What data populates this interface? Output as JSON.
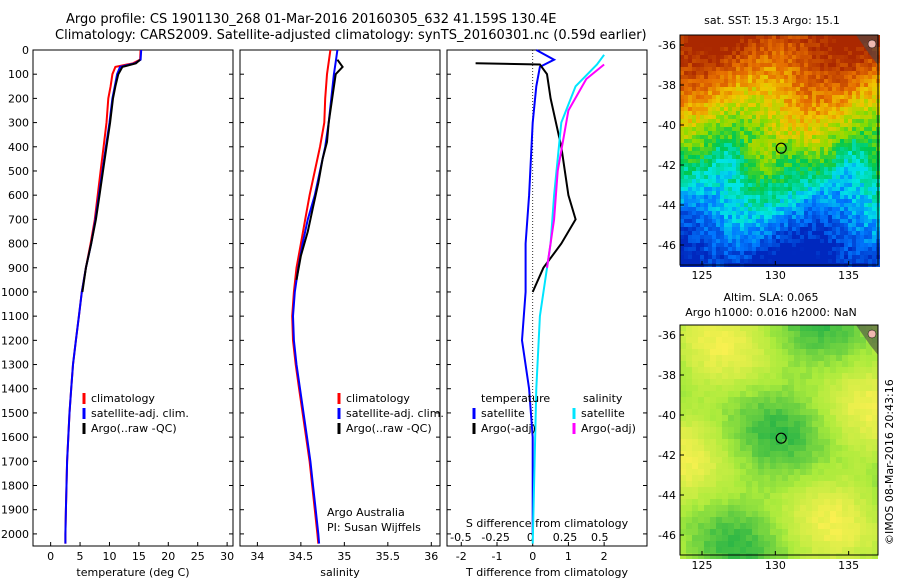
{
  "title_line1": "Argo profile: CS 1901130_268 01-Mar-2016 20160305_632 41.159S 130.4E",
  "title_line2": "Climatology: CARS2009. Satellite-adjusted climatology: synTS_20160301.nc (0.59d earlier)",
  "colors": {
    "climatology": "#ff0000",
    "satellite": "#0000ff",
    "argo": "#000000",
    "sal_satellite": "#00e5ff",
    "sal_argo": "#ff00ff"
  },
  "chart_data": [
    {
      "type": "line",
      "xlabel": "temperature (deg C)",
      "xlim": [
        -3,
        31
      ],
      "xticks": [
        0,
        5,
        10,
        15,
        20,
        25,
        30
      ],
      "ylim": [
        2050,
        0
      ],
      "yticks": [
        0,
        100,
        200,
        300,
        400,
        500,
        600,
        700,
        800,
        900,
        1000,
        1100,
        1200,
        1300,
        1400,
        1500,
        1600,
        1700,
        1800,
        1900,
        2000
      ],
      "legend": [
        "climatology",
        "satellite-adj. clim.",
        "Argo(..raw -QC)"
      ],
      "series": [
        {
          "name": "climatology",
          "color": "#ff0000",
          "points": [
            [
              15.3,
              0
            ],
            [
              15.2,
              40
            ],
            [
              14,
              55
            ],
            [
              11,
              70
            ],
            [
              10.5,
              100
            ],
            [
              10.2,
              150
            ],
            [
              9.8,
              200
            ],
            [
              9.5,
              300
            ],
            [
              9.0,
              400
            ],
            [
              8.5,
              500
            ],
            [
              8.0,
              600
            ],
            [
              7.5,
              700
            ],
            [
              6.8,
              800
            ],
            [
              6.0,
              900
            ],
            [
              5.3,
              1000
            ],
            [
              4.8,
              1100
            ],
            [
              4.3,
              1200
            ],
            [
              3.8,
              1300
            ],
            [
              3.5,
              1400
            ],
            [
              3.2,
              1500
            ],
            [
              3.0,
              1600
            ],
            [
              2.8,
              1700
            ],
            [
              2.7,
              1800
            ],
            [
              2.6,
              1900
            ],
            [
              2.5,
              2000
            ],
            [
              2.5,
              2040
            ]
          ]
        },
        {
          "name": "satellite-adj. clim.",
          "color": "#0000ff",
          "points": [
            [
              15.4,
              0
            ],
            [
              15.3,
              40
            ],
            [
              14.3,
              55
            ],
            [
              11.8,
              70
            ],
            [
              11.3,
              100
            ],
            [
              10.9,
              150
            ],
            [
              10.5,
              200
            ],
            [
              10.0,
              300
            ],
            [
              9.4,
              400
            ],
            [
              8.8,
              500
            ],
            [
              8.2,
              600
            ],
            [
              7.6,
              700
            ],
            [
              6.9,
              800
            ],
            [
              6.0,
              900
            ],
            [
              5.3,
              1000
            ],
            [
              4.8,
              1100
            ],
            [
              4.3,
              1200
            ],
            [
              3.8,
              1300
            ],
            [
              3.5,
              1400
            ],
            [
              3.2,
              1500
            ],
            [
              3.0,
              1600
            ],
            [
              2.8,
              1700
            ],
            [
              2.7,
              1800
            ],
            [
              2.6,
              1900
            ],
            [
              2.5,
              2000
            ],
            [
              2.5,
              2040
            ]
          ]
        },
        {
          "name": "Argo(..raw -QC)",
          "color": "#000000",
          "points": [
            [
              15.2,
              40
            ],
            [
              14.5,
              55
            ],
            [
              12.2,
              70
            ],
            [
              11.5,
              100
            ],
            [
              11.0,
              150
            ],
            [
              10.6,
              200
            ],
            [
              10.1,
              300
            ],
            [
              9.5,
              400
            ],
            [
              8.9,
              500
            ],
            [
              8.3,
              600
            ],
            [
              7.7,
              700
            ],
            [
              6.9,
              800
            ],
            [
              6.0,
              900
            ],
            [
              5.4,
              1000
            ]
          ]
        }
      ]
    },
    {
      "type": "line",
      "xlabel": "salinity",
      "xlim": [
        33.8,
        36.1
      ],
      "xticks": [
        34,
        34.5,
        35,
        35.5,
        36
      ],
      "ylim": [
        2050,
        0
      ],
      "legend": [
        "climatology",
        "satellite-adj. clim.",
        "Argo(..raw -QC)"
      ],
      "annotation": [
        "Argo Australia",
        "PI: Susan Wijffels"
      ],
      "series": [
        {
          "name": "climatology",
          "color": "#ff0000",
          "points": [
            [
              34.84,
              0
            ],
            [
              34.82,
              50
            ],
            [
              34.8,
              100
            ],
            [
              34.78,
              200
            ],
            [
              34.77,
              300
            ],
            [
              34.72,
              400
            ],
            [
              34.66,
              500
            ],
            [
              34.6,
              600
            ],
            [
              34.55,
              700
            ],
            [
              34.5,
              800
            ],
            [
              34.45,
              900
            ],
            [
              34.42,
              1000
            ],
            [
              34.4,
              1100
            ],
            [
              34.41,
              1200
            ],
            [
              34.44,
              1300
            ],
            [
              34.48,
              1400
            ],
            [
              34.52,
              1500
            ],
            [
              34.56,
              1600
            ],
            [
              34.6,
              1700
            ],
            [
              34.63,
              1800
            ],
            [
              34.66,
              1900
            ],
            [
              34.69,
              2000
            ],
            [
              34.7,
              2040
            ]
          ]
        },
        {
          "name": "satellite-adj. clim.",
          "color": "#0000ff",
          "points": [
            [
              34.92,
              0
            ],
            [
              34.9,
              50
            ],
            [
              34.88,
              100
            ],
            [
              34.85,
              200
            ],
            [
              34.82,
              300
            ],
            [
              34.78,
              400
            ],
            [
              34.72,
              500
            ],
            [
              34.66,
              600
            ],
            [
              34.58,
              700
            ],
            [
              34.52,
              800
            ],
            [
              34.47,
              900
            ],
            [
              34.43,
              1000
            ],
            [
              34.41,
              1100
            ],
            [
              34.42,
              1200
            ],
            [
              34.45,
              1300
            ],
            [
              34.49,
              1400
            ],
            [
              34.53,
              1500
            ],
            [
              34.57,
              1600
            ],
            [
              34.61,
              1700
            ],
            [
              34.64,
              1800
            ],
            [
              34.67,
              1900
            ],
            [
              34.7,
              2000
            ],
            [
              34.71,
              2040
            ]
          ]
        },
        {
          "name": "Argo(..raw -QC)",
          "color": "#000000",
          "points": [
            [
              34.92,
              40
            ],
            [
              34.98,
              70
            ],
            [
              34.9,
              100
            ],
            [
              34.86,
              200
            ],
            [
              34.82,
              300
            ],
            [
              34.8,
              380
            ],
            [
              34.75,
              450
            ],
            [
              34.7,
              550
            ],
            [
              34.64,
              650
            ],
            [
              34.58,
              750
            ],
            [
              34.5,
              850
            ],
            [
              34.45,
              950
            ]
          ]
        }
      ]
    },
    {
      "type": "line",
      "xlabel": "T difference from climatology",
      "xlabel_top": "S difference from climatology",
      "xlim": [
        -2.4,
        3.2
      ],
      "xticks": [
        -2,
        -1,
        0,
        1,
        2
      ],
      "xticks_top": [
        -0.5,
        -0.25,
        0,
        0.25,
        0.5
      ],
      "ylim": [
        2050,
        0
      ],
      "legend_left_title": "temperature",
      "legend_left": [
        "satellite",
        "Argo(-adj)"
      ],
      "legend_right_title": "salinity",
      "legend_right": [
        "satellite",
        "Argo(-adj)"
      ],
      "series": [
        {
          "name": "satellite",
          "color": "#0000ff",
          "points": [
            [
              0.1,
              0
            ],
            [
              0.6,
              40
            ],
            [
              0.2,
              70
            ],
            [
              0.1,
              150
            ],
            [
              0.0,
              300
            ],
            [
              -0.1,
              600
            ],
            [
              -0.2,
              800
            ],
            [
              -0.2,
              1000
            ],
            [
              -0.3,
              1200
            ],
            [
              -0.1,
              1400
            ],
            [
              0.0,
              1600
            ],
            [
              0.0,
              2000
            ]
          ]
        },
        {
          "name": "Argo(-adj)",
          "color": "#000000",
          "points": [
            [
              -1.6,
              55
            ],
            [
              0.2,
              60
            ],
            [
              0.4,
              100
            ],
            [
              0.5,
              200
            ],
            [
              0.8,
              400
            ],
            [
              1.0,
              600
            ],
            [
              1.2,
              700
            ],
            [
              0.8,
              800
            ],
            [
              0.3,
              900
            ],
            [
              0.0,
              1000
            ]
          ]
        },
        {
          "name": "satellite",
          "color": "#00e5ff",
          "points": [
            [
              2.0,
              20
            ],
            [
              1.8,
              60
            ],
            [
              1.2,
              150
            ],
            [
              0.8,
              300
            ],
            [
              0.6,
              600
            ],
            [
              0.5,
              800
            ],
            [
              0.2,
              1100
            ],
            [
              0.1,
              1400
            ],
            [
              0.0,
              2040
            ]
          ]
        },
        {
          "name": "Argo(-adj)",
          "color": "#ff00ff",
          "points": [
            [
              2.0,
              60
            ],
            [
              1.5,
              120
            ],
            [
              1.0,
              250
            ],
            [
              0.7,
              500
            ],
            [
              0.6,
              700
            ],
            [
              0.4,
              900
            ]
          ]
        }
      ]
    },
    {
      "type": "heatmap",
      "title": "sat. SST: 15.3  Argo: 15.1",
      "xlim": [
        123.5,
        137
      ],
      "xticks": [
        125,
        130,
        135
      ],
      "ylim": [
        -47,
        -35.5
      ],
      "yticks": [
        -36,
        -38,
        -40,
        -42,
        -44,
        -46
      ],
      "marker": [
        130.4,
        -41.159
      ]
    },
    {
      "type": "heatmap",
      "title": "Altim. SLA: 0.065",
      "subtitle": "Argo h1000: 0.016  h2000: NaN",
      "xlim": [
        123.5,
        137
      ],
      "xticks": [
        125,
        130,
        135
      ],
      "ylim": [
        -47,
        -35.5
      ],
      "yticks": [
        -36,
        -38,
        -40,
        -42,
        -44,
        -46
      ],
      "marker": [
        130.4,
        -41.159
      ]
    }
  ],
  "side_text": "©IMOS 08-Mar-2016 20:43:16"
}
